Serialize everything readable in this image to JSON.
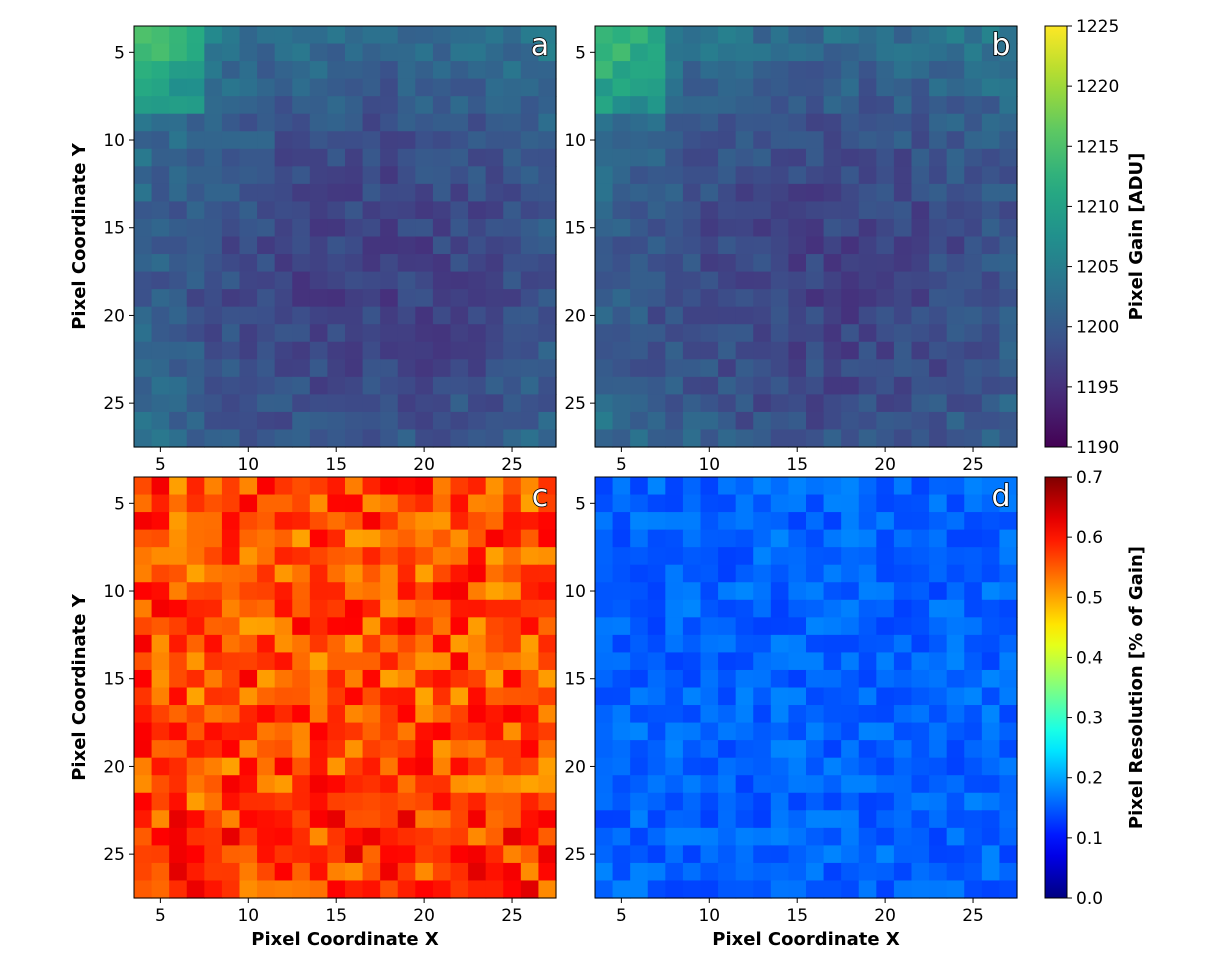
{
  "chart_data": [
    {
      "type": "heatmap",
      "panel": "a",
      "colormap": "viridis",
      "colorbar_group": "gain",
      "pattern": "gain",
      "seed": 11,
      "xlabel": "",
      "ylabel": "Pixel Coordinate Y",
      "x_range": [
        3.5,
        27.5
      ],
      "y_range": [
        3.5,
        27.5
      ],
      "xticks": [
        5,
        10,
        15,
        20,
        25
      ],
      "yticks": [
        5,
        10,
        15,
        20,
        25
      ],
      "value_range": [
        1190,
        1225
      ]
    },
    {
      "type": "heatmap",
      "panel": "b",
      "colormap": "viridis",
      "colorbar_group": "gain",
      "pattern": "gain",
      "seed": 23,
      "xlabel": "",
      "ylabel": "",
      "x_range": [
        3.5,
        27.5
      ],
      "y_range": [
        3.5,
        27.5
      ],
      "xticks": [
        5,
        10,
        15,
        20,
        25
      ],
      "yticks": [
        5,
        10,
        15,
        20,
        25
      ],
      "value_range": [
        1190,
        1225
      ]
    },
    {
      "type": "heatmap",
      "panel": "c",
      "colormap": "jet",
      "colorbar_group": "resolution",
      "pattern": "resolution-high",
      "seed": 37,
      "xlabel": "Pixel Coordinate X",
      "ylabel": "Pixel Coordinate Y",
      "x_range": [
        3.5,
        27.5
      ],
      "y_range": [
        3.5,
        27.5
      ],
      "xticks": [
        5,
        10,
        15,
        20,
        25
      ],
      "yticks": [
        5,
        10,
        15,
        20,
        25
      ],
      "value_range": [
        0.0,
        0.7
      ]
    },
    {
      "type": "heatmap",
      "panel": "d",
      "colormap": "jet",
      "colorbar_group": "resolution",
      "pattern": "resolution-low",
      "seed": 53,
      "xlabel": "Pixel Coordinate X",
      "ylabel": "",
      "x_range": [
        3.5,
        27.5
      ],
      "y_range": [
        3.5,
        27.5
      ],
      "xticks": [
        5,
        10,
        15,
        20,
        25
      ],
      "yticks": [
        5,
        10,
        15,
        20,
        25
      ],
      "value_range": [
        0.0,
        0.7
      ]
    }
  ],
  "colorbars": {
    "gain": {
      "label": "Pixel Gain [ADU]",
      "colormap": "viridis",
      "range": [
        1190,
        1225
      ],
      "ticks": [
        "1190",
        "1195",
        "1200",
        "1205",
        "1210",
        "1215",
        "1220",
        "1225"
      ]
    },
    "resolution": {
      "label": "Pixel Resolution [% of Gain]",
      "colormap": "jet",
      "range": [
        0.0,
        0.7
      ],
      "ticks": [
        "0.0",
        "0.1",
        "0.2",
        "0.3",
        "0.4",
        "0.5",
        "0.6",
        "0.7"
      ]
    }
  }
}
